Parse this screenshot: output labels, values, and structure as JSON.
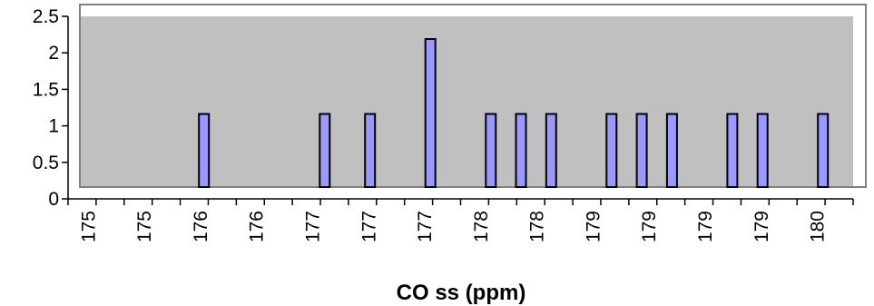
{
  "chart_data": {
    "type": "bar",
    "categories": [
      "175",
      "175",
      "176",
      "176",
      "177",
      "177",
      "177",
      "178",
      "178",
      "179",
      "179",
      "179",
      "179",
      "180"
    ],
    "x": [
      175.9,
      176.7,
      177.0,
      177.4,
      177.8,
      178.0,
      178.2,
      178.6,
      178.8,
      179.0,
      179.4,
      179.6,
      180.0
    ],
    "values": [
      1,
      1,
      1,
      2,
      1,
      1,
      1,
      1,
      1,
      1,
      1,
      1,
      1
    ],
    "xlabel": "CO ss (ppm)",
    "ylabel": "",
    "ylim": [
      0,
      2.5
    ],
    "xlim": [
      175.0,
      180.2
    ],
    "yticks": [
      "0",
      "0.5",
      "1",
      "1.5",
      "2",
      "2.5"
    ],
    "grid": false,
    "colors": {
      "bar_fill": "#9999ff",
      "bar_stroke": "#000000",
      "plot_area": "#c0c0c0",
      "plot_border": "#808080"
    }
  }
}
